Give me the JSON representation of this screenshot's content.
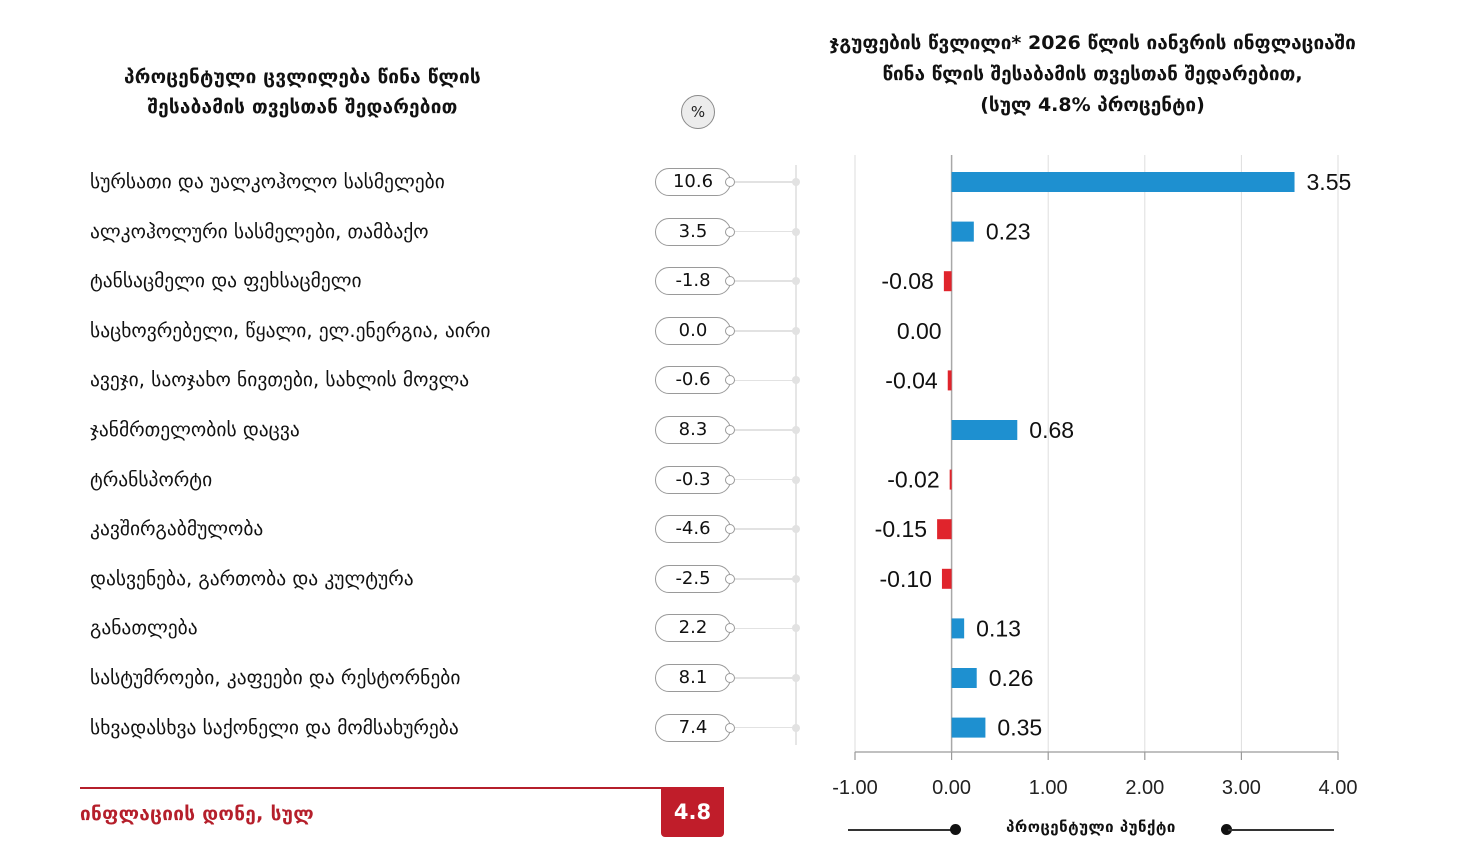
{
  "left_panel": {
    "title_line1": "პროცენტული ცვლილება წინა წლის",
    "title_line2": "შესაბამის თვესთან შედარებით",
    "unit_badge": "%"
  },
  "right_panel": {
    "title_line1": "ჯგუფების წვლილი* 2026 წლის იანვრის ინფლაციაში",
    "title_line2": "წინა წლის შესაბამის თვესთან შედარებით,",
    "title_line3": "(სულ 4.8% პროცენტი)"
  },
  "footer": {
    "label": "ინფლაციის დონე, სულ",
    "value": "4.8"
  },
  "colors": {
    "positive": "#1e90d0",
    "negative": "#e0242c",
    "accent_red": "#c01d2a"
  },
  "chart_data": {
    "type": "bar",
    "orientation": "horizontal",
    "title": "ჯგუფების წვლილი* 2026 წლის იანვრის ინფლაციაში წინა წლის შესაბამის თვესთან შედარებით, (სულ 4.8% პროცენტი)",
    "xlabel": "პროცენტული პუნქტი",
    "ylabel": "",
    "xlim": [
      -1.0,
      4.0
    ],
    "xticks": [
      "-1.00",
      "0.00",
      "1.00",
      "2.00",
      "3.00",
      "4.00"
    ],
    "grid": true,
    "categories": [
      "სურსათი და უალკოჰოლო სასმელები",
      "ალკოჰოლური სასმელები, თამბაქო",
      "ტანსაცმელი და ფეხსაცმელი",
      "საცხოვრებელი, წყალი, ელ.ენერგია, აირი",
      "ავეჯი, საოჯახო ნივთები, სახლის მოვლა",
      "ჯანმრთელობის დაცვა",
      "ტრანსპორტი",
      "კავშირგაბმულობა",
      "დასვენება, გართობა და კულტურა",
      "განათლება",
      "სასტუმროები, კაფეები და რესტორნები",
      "სხვადასხვა საქონელი და მომსახურება"
    ],
    "annual_change_pct": [
      "10.6",
      "3.5",
      "-1.8",
      "0.0",
      "-0.6",
      "8.3",
      "-0.3",
      "-4.6",
      "-2.5",
      "2.2",
      "8.1",
      "7.4"
    ],
    "series": [
      {
        "name": "contribution_pp",
        "values": [
          3.55,
          0.23,
          -0.08,
          0.0,
          -0.04,
          0.68,
          -0.02,
          -0.15,
          -0.1,
          0.13,
          0.26,
          0.35
        ],
        "labels": [
          "3.55",
          "0.23",
          "-0.08",
          "0.00",
          "-0.04",
          "0.68",
          "-0.02",
          "-0.15",
          "-0.10",
          "0.13",
          "0.26",
          "0.35"
        ]
      }
    ]
  }
}
